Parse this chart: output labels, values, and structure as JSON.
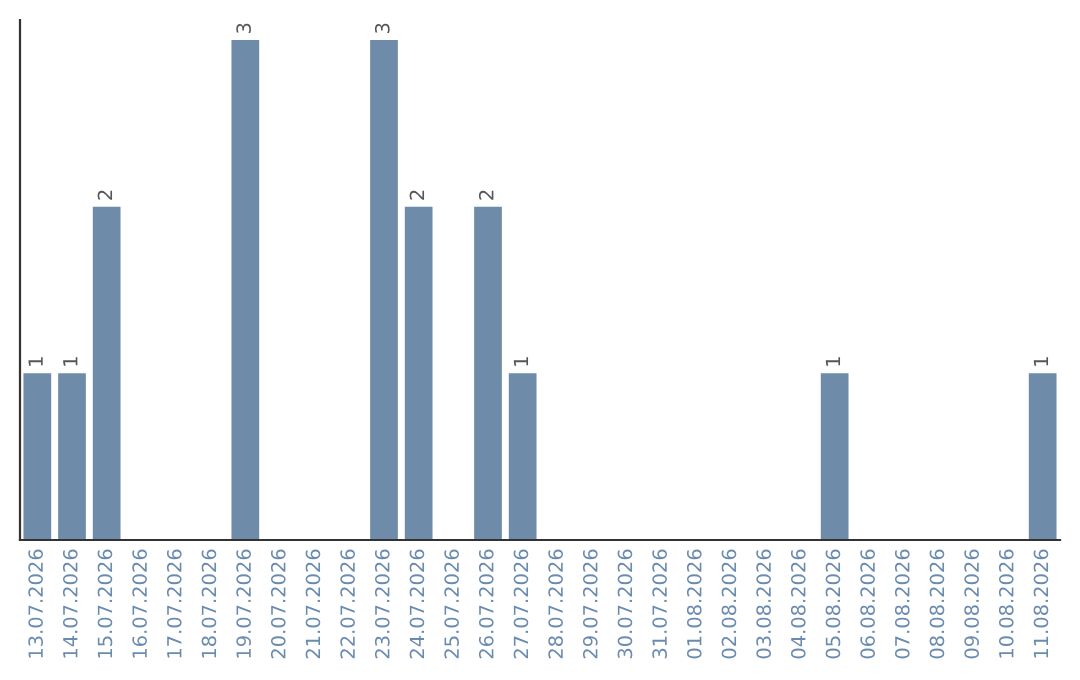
{
  "chart_data": {
    "type": "bar",
    "categories": [
      "13.07.2026",
      "14.07.2026",
      "15.07.2026",
      "16.07.2026",
      "17.07.2026",
      "18.07.2026",
      "19.07.2026",
      "20.07.2026",
      "21.07.2026",
      "22.07.2026",
      "23.07.2026",
      "24.07.2026",
      "25.07.2026",
      "26.07.2026",
      "27.07.2026",
      "28.07.2026",
      "29.07.2026",
      "30.07.2026",
      "31.07.2026",
      "01.08.2026",
      "02.08.2026",
      "03.08.2026",
      "04.08.2026",
      "05.08.2026",
      "06.08.2026",
      "07.08.2026",
      "08.08.2026",
      "09.08.2026",
      "10.08.2026",
      "11.08.2026"
    ],
    "values": [
      1,
      1,
      2,
      0,
      0,
      0,
      3,
      0,
      0,
      0,
      3,
      2,
      0,
      2,
      1,
      0,
      0,
      0,
      0,
      0,
      0,
      0,
      0,
      1,
      0,
      0,
      0,
      0,
      0,
      1
    ],
    "value_labels": [
      "1",
      "1",
      "2",
      null,
      null,
      null,
      "3",
      null,
      null,
      null,
      "3",
      "2",
      null,
      "2",
      "1",
      null,
      null,
      null,
      null,
      null,
      null,
      null,
      null,
      "1",
      null,
      null,
      null,
      null,
      null,
      "1"
    ],
    "color": "#6e8caa",
    "tick_labels": "x",
    "grid": false,
    "legend": false
  }
}
